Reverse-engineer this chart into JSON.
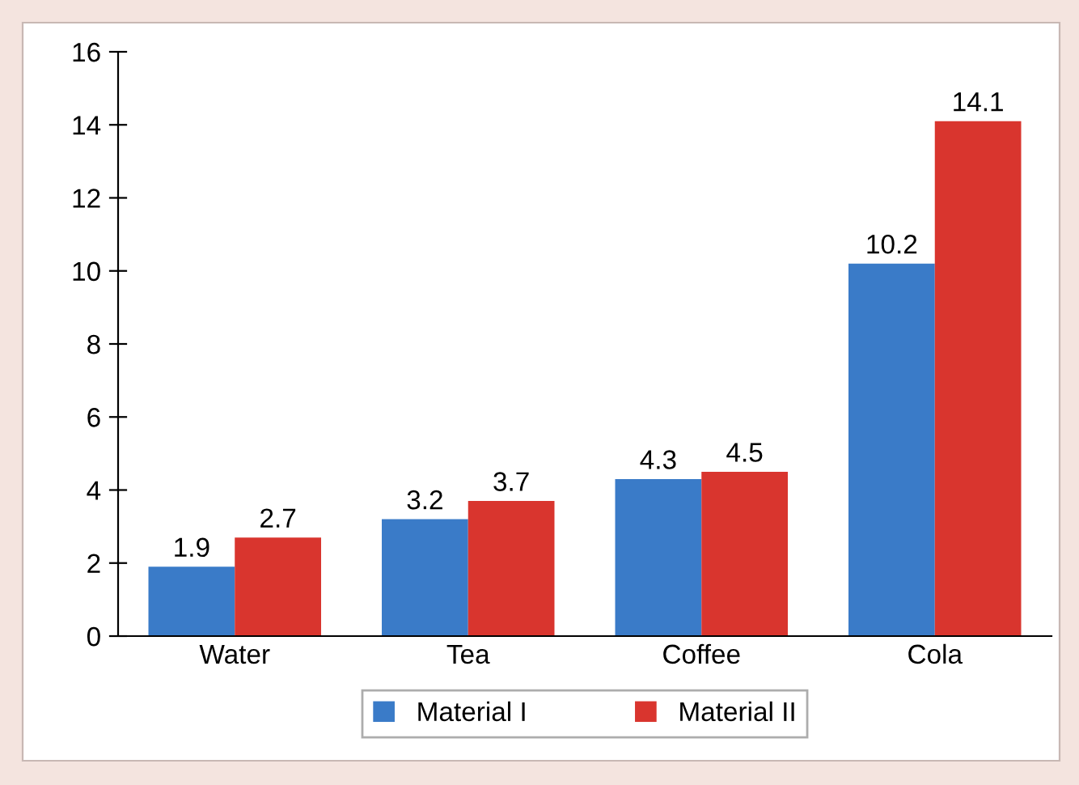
{
  "chart_data": {
    "type": "bar",
    "categories": [
      "Water",
      "Tea",
      "Coffee",
      "Cola"
    ],
    "series": [
      {
        "name": "Material I",
        "color": "#3a7bc8",
        "values": [
          1.9,
          3.2,
          4.3,
          10.2
        ]
      },
      {
        "name": "Material II",
        "color": "#d9352e",
        "values": [
          2.7,
          3.7,
          4.5,
          14.1
        ]
      }
    ],
    "ylim": [
      0,
      16
    ],
    "yticks": [
      0,
      2,
      4,
      6,
      8,
      10,
      12,
      14,
      16
    ],
    "data_labels": true,
    "legend": "bottom",
    "grid": false
  }
}
